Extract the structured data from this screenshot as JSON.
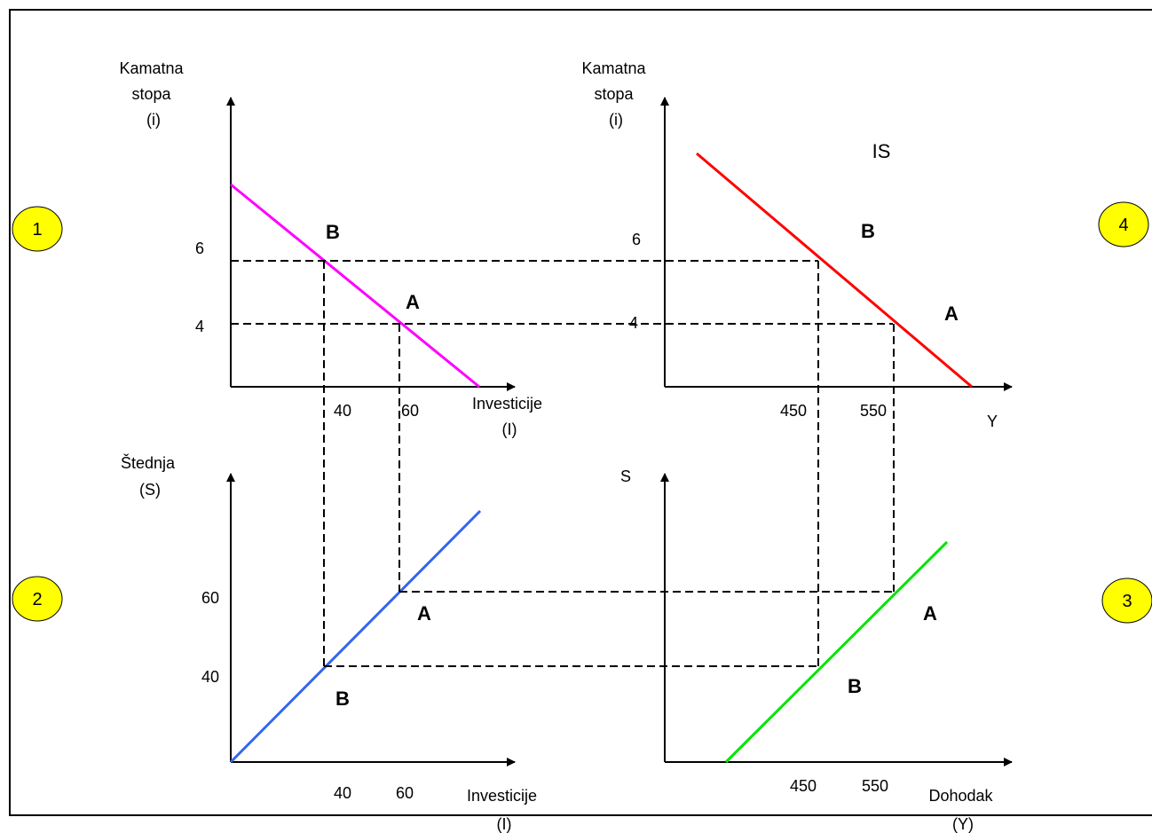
{
  "colors": {
    "investment": "#ff00ff",
    "is_curve": "#ff0000",
    "savings_identity": "#3366ee",
    "savings_income": "#00e600",
    "savings_points": "#339966",
    "badge": "#ffff00"
  },
  "quadrant_numbers": [
    "1",
    "2",
    "3",
    "4"
  ],
  "q1": {
    "ylabel": [
      "Kamatna",
      "stopa",
      "(i)"
    ],
    "xlabel": [
      "Investicije",
      "(I)"
    ],
    "y_ticks": [
      "6",
      "4"
    ],
    "x_ticks": [
      "40",
      "60"
    ],
    "point_b": "B",
    "point_a": "A"
  },
  "q4": {
    "ylabel": [
      "Kamatna",
      "stopa",
      "(i)"
    ],
    "xlabel": "Y",
    "curve_label": "IS",
    "y_ticks": [
      "6",
      "4"
    ],
    "x_ticks": [
      "450",
      "550"
    ],
    "point_b": "B",
    "point_a": "A"
  },
  "q2": {
    "ylabel": [
      "Štednja",
      "(S)"
    ],
    "xlabel": [
      "Investicije",
      "(I)"
    ],
    "y_ticks": [
      "60",
      "40"
    ],
    "x_ticks": [
      "40",
      "60"
    ],
    "point_a": "A",
    "point_b": "B"
  },
  "q3": {
    "ylabel": "S",
    "xlabel": [
      "Dohodak",
      "(Y)"
    ],
    "x_ticks": [
      "450",
      "550"
    ],
    "point_a": "A",
    "point_b": "B"
  }
}
